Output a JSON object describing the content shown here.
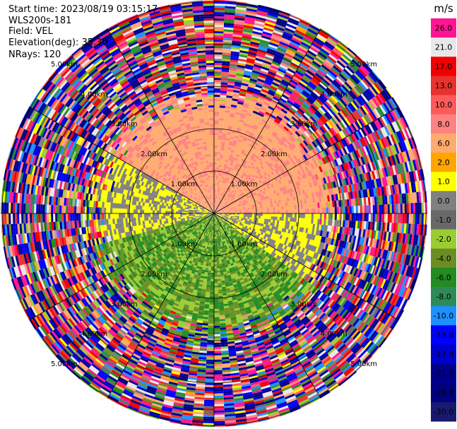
{
  "header": {
    "start_label": "Start time:",
    "start_time": "2023/08/19 03:15:17",
    "instrument": "WLS200s-181",
    "field_label": "Field:",
    "field": "VEL",
    "elevation_label": "Elevation(deg):",
    "elevation": "35.30",
    "nrays_label": "NRays:",
    "nrays": "120"
  },
  "chart_data": {
    "type": "heatmap",
    "projection": "polar-ppi",
    "field": "VEL",
    "n_rays": 120,
    "range_rings": [
      {
        "label": "1.00km"
      },
      {
        "label": "2.00km"
      },
      {
        "label": "3.00km"
      },
      {
        "label": "4.00km"
      },
      {
        "label": "5.00km"
      }
    ],
    "colorbar": {
      "unit": "m/s",
      "ticks": [
        "26.0",
        "21.0",
        "17.0",
        "13.0",
        "10.0",
        "8.0",
        "6.0",
        "2.0",
        "1.0",
        "0.0",
        "-1.0",
        "-2.0",
        "-4.0",
        "-6.0",
        "-8.0",
        "-10.0",
        "-13.0",
        "-17.0",
        "-21.0",
        "-26.0",
        "-30.0"
      ],
      "colors": [
        "#ff1493",
        "#e8e8e8",
        "#f00000",
        "#e8322d",
        "#ff5a5a",
        "#ff8282",
        "#ffaa6e",
        "#ffa500",
        "#ffff00",
        "#808080",
        "#696969",
        "#9acd32",
        "#6b8e23",
        "#228b22",
        "#2e8b57",
        "#1e90ff",
        "#0000ff",
        "#0000cd",
        "#00008b",
        "#000080",
        "#191970"
      ]
    },
    "velocity_pattern": {
      "description_sectors": [
        {
          "azimuth_from_deg": 300,
          "azimuth_to_deg": 90,
          "max_range_km": 3.0,
          "value_range": [
            2.0,
            8.0
          ]
        },
        {
          "azimuth_from_deg": 90,
          "azimuth_to_deg": 125,
          "max_range_km": 3.0,
          "value_range": [
            -1.0,
            1.0
          ]
        },
        {
          "azimuth_from_deg": 125,
          "azimuth_to_deg": 255,
          "max_range_km": 3.0,
          "value_range": [
            -8.0,
            -2.0
          ]
        },
        {
          "azimuth_from_deg": 255,
          "azimuth_to_deg": 300,
          "max_range_km": 3.0,
          "value_range": [
            -1.0,
            1.0
          ]
        }
      ],
      "noise_beyond_km": 3.0
    }
  }
}
